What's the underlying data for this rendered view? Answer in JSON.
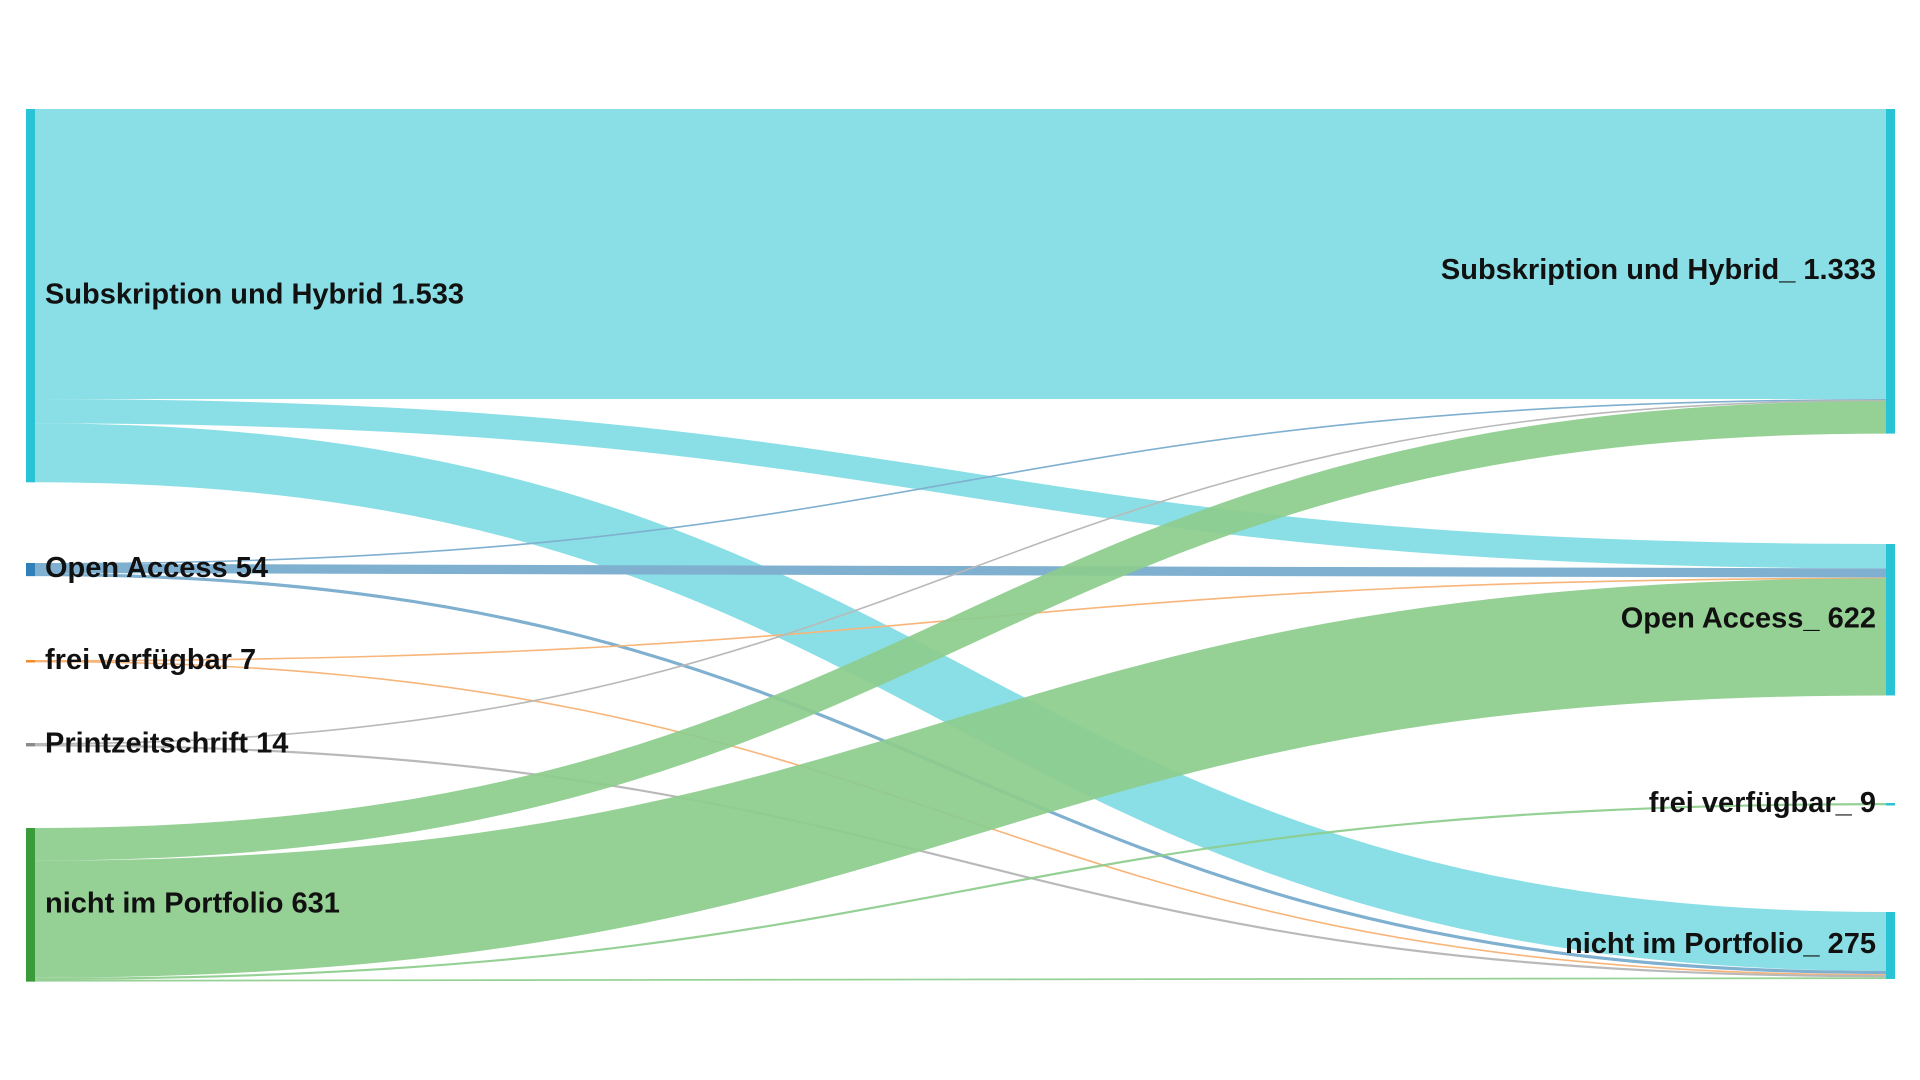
{
  "sources": [
    {
      "id": "s_sub",
      "label": "Subskription und Hybrid 1.533",
      "value": 1533,
      "color": "#28c3d5"
    },
    {
      "id": "s_oa",
      "label": "Open Access 54",
      "value": 54,
      "color": "#2f7fb8"
    },
    {
      "id": "s_frei",
      "label": "frei verfügbar 7",
      "value": 7,
      "color": "#f28c28"
    },
    {
      "id": "s_print",
      "label": "Printzeitschrift 14",
      "value": 14,
      "color": "#8a8a8a"
    },
    {
      "id": "s_nicht",
      "label": "nicht im Portfolio 631",
      "value": 631,
      "color": "#3a9b3a"
    }
  ],
  "targets": [
    {
      "id": "t_sub",
      "label": "Subskription und Hybrid_ 1.333",
      "value": 1333,
      "color": "#28c3d5"
    },
    {
      "id": "t_oa",
      "label": "Open Access_ 622",
      "value": 622,
      "color": "#28c3d5"
    },
    {
      "id": "t_frei",
      "label": "frei verfügbar_ 9",
      "value": 9,
      "color": "#28c3d5"
    },
    {
      "id": "t_nicht",
      "label": "nicht im Portfolio_ 275",
      "value": 275,
      "color": "#28c3d5"
    }
  ],
  "links": [
    {
      "source": "s_sub",
      "target": "t_sub",
      "value": 1191,
      "color": "#8adfe6"
    },
    {
      "source": "s_sub",
      "target": "t_oa",
      "value": 100,
      "color": "#8adfe6"
    },
    {
      "source": "s_sub",
      "target": "t_nicht",
      "value": 242,
      "color": "#8adfe6"
    },
    {
      "source": "s_oa",
      "target": "t_sub",
      "value": 3,
      "color": "#7fb0d0"
    },
    {
      "source": "s_oa",
      "target": "t_oa",
      "value": 38,
      "color": "#7fb0d0"
    },
    {
      "source": "s_oa",
      "target": "t_nicht",
      "value": 13,
      "color": "#7fb0d0"
    },
    {
      "source": "s_frei",
      "target": "t_oa",
      "value": 3,
      "color": "#f7b57a"
    },
    {
      "source": "s_frei",
      "target": "t_nicht",
      "value": 4,
      "color": "#f7b57a"
    },
    {
      "source": "s_print",
      "target": "t_sub",
      "value": 5,
      "color": "#b9b9b9"
    },
    {
      "source": "s_print",
      "target": "t_nicht",
      "value": 9,
      "color": "#b9b9b9"
    },
    {
      "source": "s_nicht",
      "target": "t_sub",
      "value": 134,
      "color": "#8ccc8c"
    },
    {
      "source": "s_nicht",
      "target": "t_oa",
      "value": 481,
      "color": "#8ccc8c"
    },
    {
      "source": "s_nicht",
      "target": "t_frei",
      "value": 9,
      "color": "#8ccc8c"
    },
    {
      "source": "s_nicht",
      "target": "t_nicht",
      "value": 7,
      "color": "#8ccc8c"
    }
  ]
}
